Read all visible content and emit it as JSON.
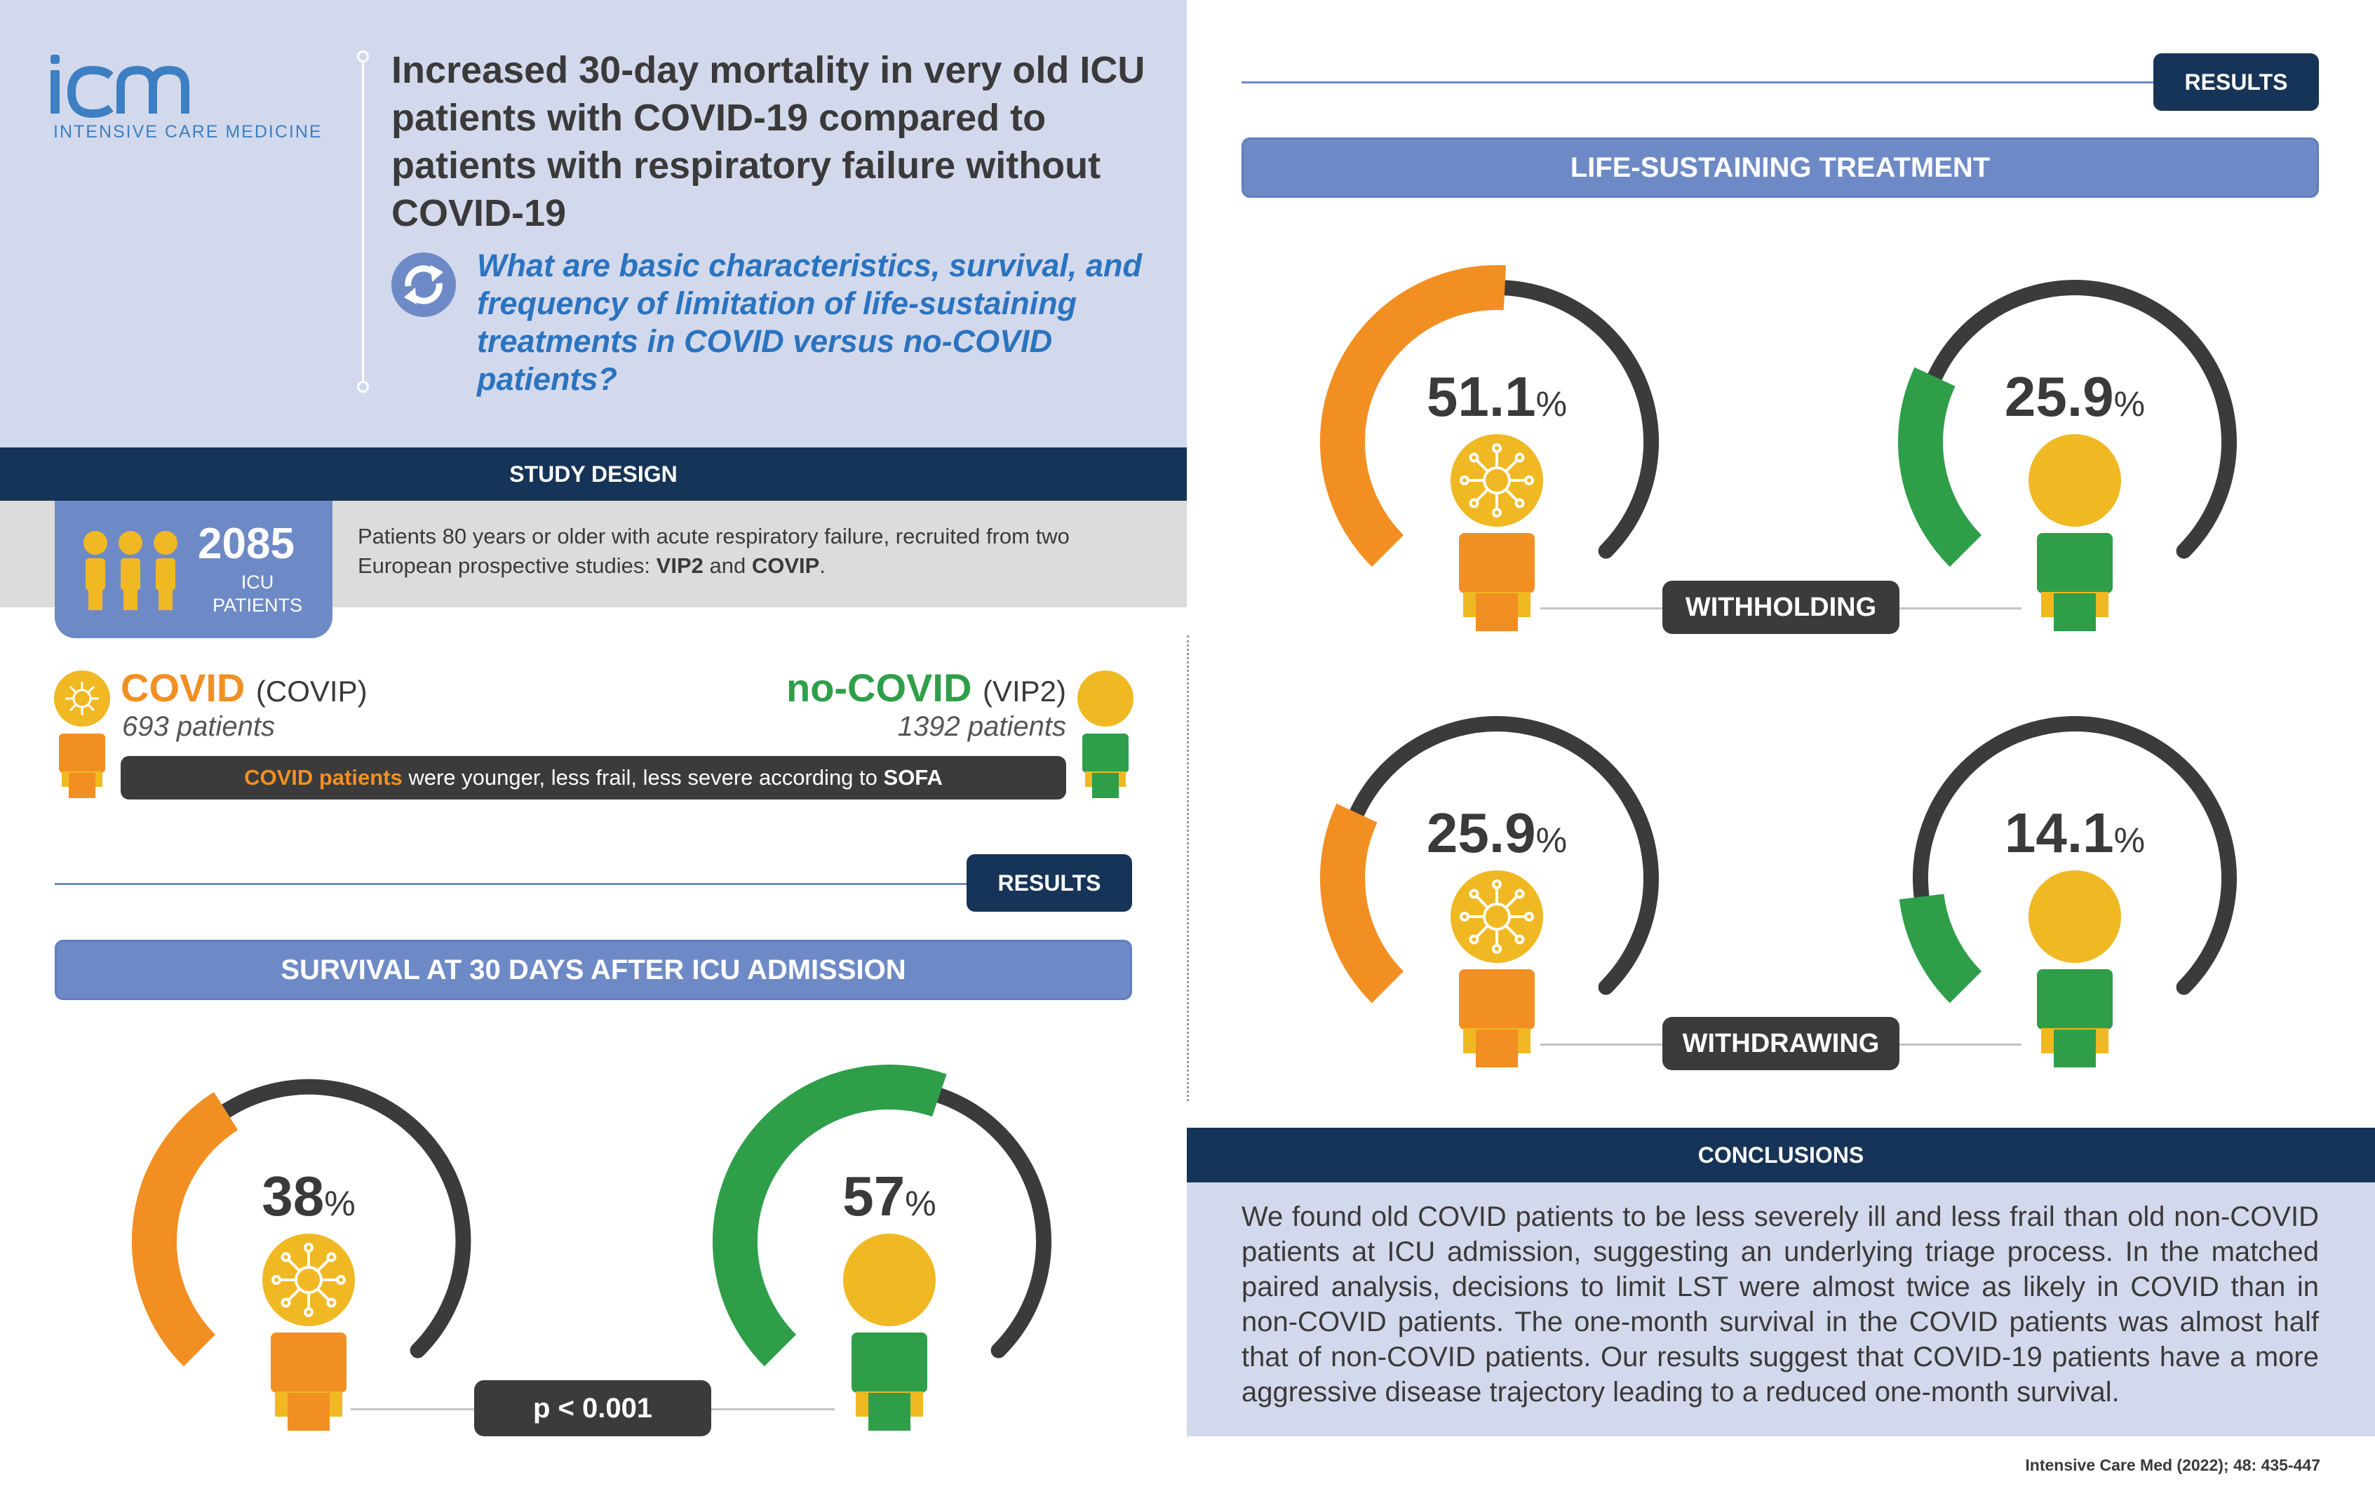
{
  "logo": {
    "mark": "icm",
    "text": "INTENSIVE CARE MEDICINE"
  },
  "title": "Increased 30-day mortality in very old ICU patients with COVID-19 compared to patients with respiratory failure without COVID-19",
  "question": "What are basic characteristics, survival, and frequency of limitation of life-sustaining treatments in COVID versus no-COVID patients?",
  "study_design": {
    "heading": "STUDY DESIGN",
    "count": "2085",
    "count_label": "ICU PATIENTS",
    "text_before": "Patients 80 years or older with acute respiratory failure, recruited from two European prospective studies: ",
    "study_a": "VIP2",
    "text_and": " and ",
    "study_b": "COVIP",
    "text_after": "."
  },
  "groups": {
    "covid": {
      "name": "COVID",
      "study": "(COVIP)",
      "patients": "693 patients"
    },
    "nocovid": {
      "name": "no-COVID",
      "study": "(VIP2)",
      "patients": "1392 patients"
    }
  },
  "finding": {
    "highlight": "COVID patients",
    "text": " were younger, less frail, less severe according to ",
    "bold": "SOFA"
  },
  "results_label": "RESULTS",
  "survival": {
    "title": "SURVIVAL AT 30 DAYS AFTER ICU ADMISSION",
    "covid": {
      "value": "38",
      "pct": "%",
      "fraction": 0.38
    },
    "nocovid": {
      "value": "57",
      "pct": "%",
      "fraction": 0.57
    },
    "p_value": "p < 0.001"
  },
  "lst": {
    "title": "LIFE-SUSTAINING TREATMENT",
    "withholding": {
      "label": "WITHHOLDING",
      "covid": {
        "value": "51.1",
        "pct": "%",
        "fraction": 0.511
      },
      "nocovid": {
        "value": "25.9",
        "pct": "%",
        "fraction": 0.259
      }
    },
    "withdrawing": {
      "label": "WITHDRAWING",
      "covid": {
        "value": "25.9",
        "pct": "%",
        "fraction": 0.259
      },
      "nocovid": {
        "value": "14.1",
        "pct": "%",
        "fraction": 0.141
      }
    }
  },
  "conclusions": {
    "heading": "CONCLUSIONS",
    "text": "We found old COVID patients to be less severely ill and less frail than old non-COVID patients at ICU admission, suggesting an underlying triage process. In the matched paired analysis, decisions to limit LST were almost twice as likely in COVID than in non-COVID patients. The one-month survival in the COVID patients was almost half that of non-COVID patients. Our results suggest that COVID-19 patients have a more aggressive disease trajectory leading to a reduced one-month survival."
  },
  "citation": "Intensive Care Med (2022); 48: 435-447",
  "colors": {
    "covid": "#f28f22",
    "nocovid": "#2f9e49",
    "track": "#3b3b3b",
    "head": "#f0b823",
    "navy": "#163457",
    "accent": "#6e8ac6",
    "icm_blue": "#3d7fc2"
  },
  "icons": {
    "covid_person": "virus-person-icon",
    "nocovid_person": "person-icon",
    "question": "question-exchange-icon",
    "patients": "people-group-icon"
  }
}
